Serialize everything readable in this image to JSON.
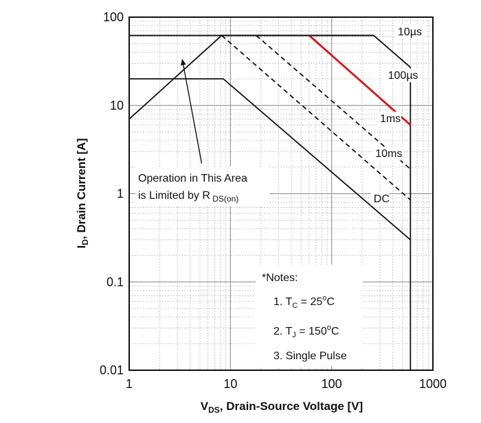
{
  "chart_data": {
    "type": "line",
    "title": "",
    "x_scale": "log",
    "y_scale": "log",
    "xlim": [
      1,
      1000
    ],
    "ylim": [
      0.01,
      100
    ],
    "grid": true,
    "x_ticks": [
      "1",
      "10",
      "100",
      "1000"
    ],
    "y_ticks": [
      "0.01",
      "0.1",
      "1",
      "10",
      "100"
    ],
    "xlabel": {
      "prefix": "V",
      "sub": "DS",
      "rest": ", Drain-Source Voltage [V]"
    },
    "ylabel": {
      "prefix": "I",
      "sub": "D",
      "rest": ", Drain Current [A]"
    },
    "series": [
      {
        "name": "10µs",
        "style": "solid",
        "color": "#111111",
        "x": [
          1,
          8.2,
          260,
          600
        ],
        "y": [
          7,
          62,
          62,
          27
        ]
      },
      {
        "name": "100µs",
        "style": "solid",
        "color": "#111111",
        "x": [
          60,
          600
        ],
        "y": [
          62,
          6
        ]
      },
      {
        "name": "1ms",
        "style": "dashed",
        "color": "#111111",
        "x": [
          8.2,
          600
        ],
        "y": [
          62,
          0.85
        ]
      },
      {
        "name": "10ms",
        "style": "dashed",
        "color": "#111111",
        "x": [
          18,
          600
        ],
        "y": [
          62,
          1.9
        ]
      },
      {
        "name": "DC",
        "style": "solid",
        "color": "#111111",
        "x": [
          1,
          8.5,
          600
        ],
        "y": [
          20,
          20,
          0.3
        ]
      },
      {
        "name": "",
        "style": "solid",
        "color": "#111111",
        "x": [
          1,
          260
        ],
        "y": [
          62,
          62
        ]
      },
      {
        "name": "",
        "style": "solid",
        "color": "#111111",
        "x": [
          600,
          600
        ],
        "y": [
          0.01,
          27
        ]
      },
      {
        "name": "",
        "style": "solid",
        "color": "#dd1111",
        "x": [
          60,
          600
        ],
        "y": [
          62,
          6
        ]
      }
    ],
    "curve_labels": [
      {
        "text": "10µs",
        "x": 450,
        "y": 62
      },
      {
        "text": "100µs",
        "x": 360,
        "y": 20
      },
      {
        "text": "1ms",
        "x": 300,
        "y": 6.5
      },
      {
        "text": "10ms",
        "x": 270,
        "y": 2.6
      },
      {
        "text": "DC",
        "x": 260,
        "y": 0.8
      }
    ],
    "annotations": {
      "line1": "Operation in This Area",
      "line2_prefix": "is Limited by R",
      "line2_sub": " DS(on)",
      "arrow_from": {
        "x": 5.2,
        "y": 2.2
      },
      "arrow_to": {
        "x": 3.35,
        "y": 33
      }
    },
    "notes": {
      "header": "*Notes:",
      "note1": {
        "prefix": "1. T",
        "sub": "C",
        "mid": " = 25",
        "sup": "o",
        "suffix": "C"
      },
      "note2": {
        "prefix": "2. T",
        "sub": "J",
        "mid": " = 150",
        "sup": "o",
        "suffix": "C"
      },
      "note3": "3. Single Pulse"
    }
  }
}
